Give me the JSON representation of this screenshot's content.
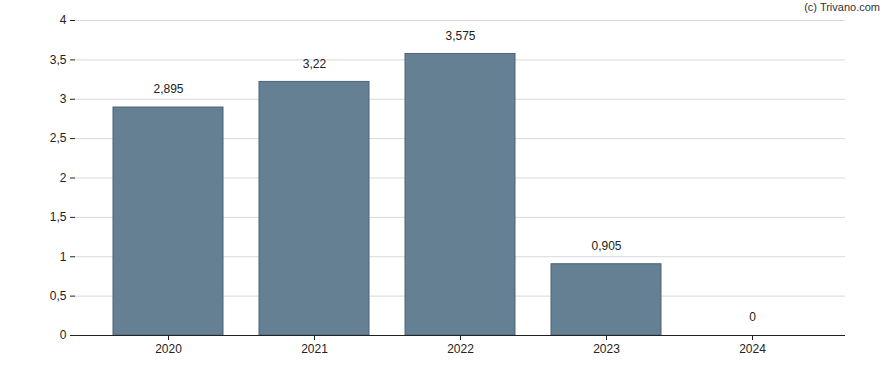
{
  "chart_data": {
    "type": "bar",
    "categories": [
      "2020",
      "2021",
      "2022",
      "2023",
      "2024"
    ],
    "values": [
      2.895,
      3.22,
      3.575,
      0.905,
      0
    ],
    "value_labels": [
      "2,895",
      "3,22",
      "3,575",
      "0,905",
      "0"
    ],
    "color": "#657f93",
    "ylim": [
      0,
      4
    ],
    "yticks": [
      0,
      {
        "value": 0.5,
        "label": "0,5"
      },
      1,
      {
        "value": 1.5,
        "label": "1,5"
      },
      2,
      {
        "value": 2.5,
        "label": "2,5"
      },
      3,
      {
        "value": 3.5,
        "label": "3,5"
      },
      4
    ],
    "grid": true,
    "data_labels": true,
    "annotations": [
      "(c) Trivano.com"
    ]
  }
}
